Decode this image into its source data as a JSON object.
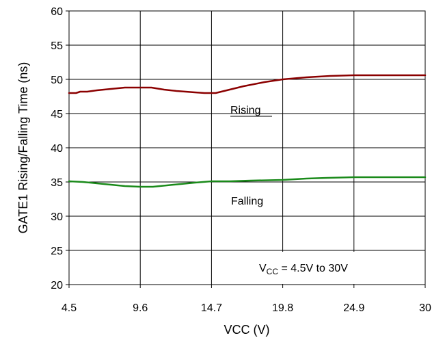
{
  "chart_data": {
    "type": "line",
    "xlabel": "VCC (V)",
    "ylabel": "GATE1 Rising/Falling Time (ns)",
    "x_ticks": [
      "4.5",
      "9.6",
      "14.7",
      "19.8",
      "24.9",
      "30"
    ],
    "y_ticks": [
      "20",
      "25",
      "30",
      "35",
      "40",
      "45",
      "50",
      "55",
      "60"
    ],
    "xlim": [
      4.5,
      30
    ],
    "ylim": [
      20,
      60
    ],
    "grid": true,
    "series": [
      {
        "name": "Rising",
        "color": "#8b0000",
        "x": [
          4.5,
          5.0,
          5.3,
          5.8,
          6.5,
          7.5,
          8.5,
          9.4,
          10.4,
          11.3,
          12.2,
          13.5,
          14.2,
          15.0,
          16.0,
          17.0,
          18.5,
          19.8,
          21.5,
          23.2,
          24.9,
          26.5,
          28.0,
          30.0
        ],
        "y": [
          48.0,
          48.0,
          48.2,
          48.2,
          48.4,
          48.6,
          48.8,
          48.8,
          48.8,
          48.5,
          48.3,
          48.1,
          48.0,
          48.0,
          48.5,
          49.0,
          49.6,
          50.0,
          50.3,
          50.5,
          50.6,
          50.6,
          50.6,
          50.6
        ],
        "label": "Rising"
      },
      {
        "name": "Falling",
        "color": "#1a8a1a",
        "x": [
          4.5,
          5.5,
          6.5,
          7.5,
          8.5,
          9.6,
          10.5,
          11.5,
          12.5,
          13.5,
          14.7,
          16.0,
          17.5,
          19.8,
          21.5,
          23.0,
          24.9,
          26.5,
          28.0,
          30.0
        ],
        "y": [
          35.1,
          35.0,
          34.8,
          34.6,
          34.4,
          34.3,
          34.3,
          34.5,
          34.7,
          34.9,
          35.1,
          35.1,
          35.2,
          35.3,
          35.5,
          35.6,
          35.7,
          35.7,
          35.7,
          35.7
        ],
        "label": "Falling"
      }
    ],
    "annotation": {
      "prefix": "V",
      "subscript": "CC",
      "suffix": " = 4.5V to 30V"
    }
  }
}
